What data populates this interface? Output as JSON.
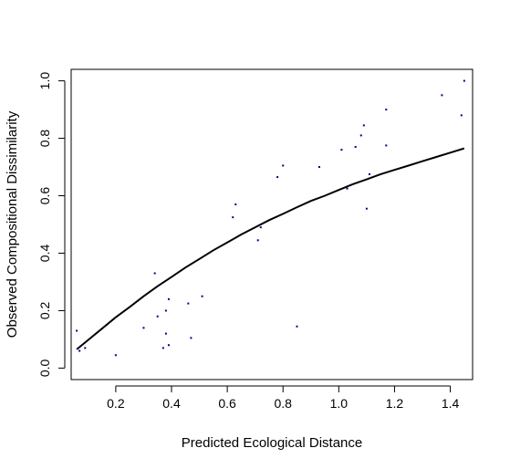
{
  "chart_data": {
    "type": "scatter",
    "title": "",
    "xlabel": "Predicted Ecological Distance",
    "ylabel": "Observed Compositional Dissimilarity",
    "xlim": [
      0.04,
      1.48
    ],
    "ylim": [
      -0.04,
      1.04
    ],
    "xticks": [
      0.2,
      0.4,
      0.6,
      0.8,
      1.0,
      1.2,
      1.4
    ],
    "xtick_labels": [
      "0.2",
      "0.4",
      "0.6",
      "0.8",
      "1.0",
      "1.2",
      "1.4"
    ],
    "yticks": [
      0.0,
      0.2,
      0.4,
      0.6,
      0.8,
      1.0
    ],
    "ytick_labels": [
      "0.0",
      "0.2",
      "0.4",
      "0.6",
      "0.8",
      "1.0"
    ],
    "grid": false,
    "point_color": "#00008b",
    "line_color": "#000000",
    "points": [
      {
        "x": 0.06,
        "y": 0.13
      },
      {
        "x": 0.07,
        "y": 0.06
      },
      {
        "x": 0.09,
        "y": 0.07
      },
      {
        "x": 0.2,
        "y": 0.045
      },
      {
        "x": 0.3,
        "y": 0.14
      },
      {
        "x": 0.34,
        "y": 0.33
      },
      {
        "x": 0.35,
        "y": 0.18
      },
      {
        "x": 0.37,
        "y": 0.07
      },
      {
        "x": 0.38,
        "y": 0.2
      },
      {
        "x": 0.38,
        "y": 0.12
      },
      {
        "x": 0.39,
        "y": 0.24
      },
      {
        "x": 0.39,
        "y": 0.08
      },
      {
        "x": 0.46,
        "y": 0.225
      },
      {
        "x": 0.47,
        "y": 0.105
      },
      {
        "x": 0.51,
        "y": 0.25
      },
      {
        "x": 0.62,
        "y": 0.525
      },
      {
        "x": 0.63,
        "y": 0.57
      },
      {
        "x": 0.71,
        "y": 0.445
      },
      {
        "x": 0.72,
        "y": 0.49
      },
      {
        "x": 0.78,
        "y": 0.665
      },
      {
        "x": 0.8,
        "y": 0.705
      },
      {
        "x": 0.85,
        "y": 0.145
      },
      {
        "x": 0.93,
        "y": 0.7
      },
      {
        "x": 1.01,
        "y": 0.76
      },
      {
        "x": 1.03,
        "y": 0.625
      },
      {
        "x": 1.06,
        "y": 0.77
      },
      {
        "x": 1.08,
        "y": 0.81
      },
      {
        "x": 1.09,
        "y": 0.845
      },
      {
        "x": 1.1,
        "y": 0.555
      },
      {
        "x": 1.11,
        "y": 0.675
      },
      {
        "x": 1.17,
        "y": 0.775
      },
      {
        "x": 1.17,
        "y": 0.9
      },
      {
        "x": 1.37,
        "y": 0.95
      },
      {
        "x": 1.44,
        "y": 0.88
      },
      {
        "x": 1.45,
        "y": 1.0
      }
    ],
    "fitted_curve": [
      {
        "x": 0.06,
        "y": 0.065
      },
      {
        "x": 0.1,
        "y": 0.097
      },
      {
        "x": 0.15,
        "y": 0.137
      },
      {
        "x": 0.2,
        "y": 0.177
      },
      {
        "x": 0.25,
        "y": 0.213
      },
      {
        "x": 0.3,
        "y": 0.25
      },
      {
        "x": 0.35,
        "y": 0.285
      },
      {
        "x": 0.4,
        "y": 0.317
      },
      {
        "x": 0.45,
        "y": 0.35
      },
      {
        "x": 0.5,
        "y": 0.38
      },
      {
        "x": 0.55,
        "y": 0.41
      },
      {
        "x": 0.6,
        "y": 0.437
      },
      {
        "x": 0.65,
        "y": 0.465
      },
      {
        "x": 0.7,
        "y": 0.49
      },
      {
        "x": 0.75,
        "y": 0.515
      },
      {
        "x": 0.8,
        "y": 0.537
      },
      {
        "x": 0.85,
        "y": 0.56
      },
      {
        "x": 0.9,
        "y": 0.582
      },
      {
        "x": 0.95,
        "y": 0.6
      },
      {
        "x": 1.0,
        "y": 0.62
      },
      {
        "x": 1.05,
        "y": 0.64
      },
      {
        "x": 1.1,
        "y": 0.657
      },
      {
        "x": 1.15,
        "y": 0.675
      },
      {
        "x": 1.2,
        "y": 0.69
      },
      {
        "x": 1.25,
        "y": 0.705
      },
      {
        "x": 1.3,
        "y": 0.72
      },
      {
        "x": 1.35,
        "y": 0.735
      },
      {
        "x": 1.4,
        "y": 0.75
      },
      {
        "x": 1.45,
        "y": 0.765
      }
    ]
  }
}
